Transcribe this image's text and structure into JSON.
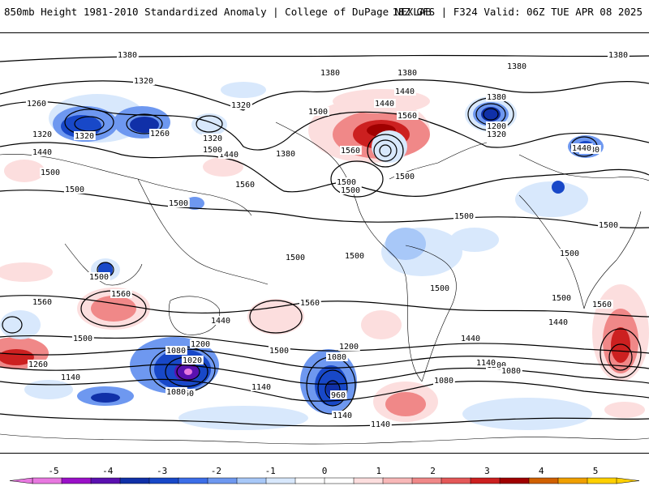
{
  "header": {
    "title": "850mb Height 1981-2010 Standardized Anomaly | College of DuPage NEXLAB",
    "run_info": "18Z GFS | F324 Valid: 06Z TUE APR 08 2025"
  },
  "colors": {
    "neg5": "#e878e0",
    "neg45": "#9a10c8",
    "neg4": "#5a10b0",
    "neg35": "#1030a8",
    "neg3": "#1848c8",
    "neg25": "#3c6ee8",
    "neg2": "#6e98f0",
    "neg15": "#a8c8f8",
    "neg1": "#d8e8fc",
    "zero": "#ffffff",
    "pos1": "#fcdede",
    "pos15": "#f8b8b8",
    "pos2": "#f08888",
    "pos25": "#e45858",
    "pos3": "#cc2020",
    "pos35": "#a00000",
    "pos4": "#d06000",
    "pos45": "#f0a000",
    "pos5": "#ffd000"
  },
  "legend": {
    "ticks": [
      "-5",
      "-4",
      "-3",
      "-2",
      "-1",
      "0",
      "1",
      "2",
      "3",
      "4",
      "5"
    ]
  },
  "contour_labels": [
    "1380",
    "1380",
    "1380",
    "1380",
    "1380",
    "1380",
    "1380",
    "1380",
    "1320",
    "1320",
    "1320",
    "1320",
    "1320",
    "1320",
    "1260",
    "1260",
    "1260",
    "1260",
    "1200",
    "1200",
    "1200",
    "1200",
    "1440",
    "1440",
    "1440",
    "1440",
    "1440",
    "1440",
    "1440",
    "1440",
    "1500",
    "1500",
    "1500",
    "1500",
    "1500",
    "1500",
    "1500",
    "1500",
    "1500",
    "1500",
    "1500",
    "1500",
    "1500",
    "1500",
    "1500",
    "1500",
    "1500",
    "1500",
    "1560",
    "1560",
    "1560",
    "1560",
    "1560",
    "1560",
    "1560",
    "1140",
    "1140",
    "1140",
    "1140",
    "1140",
    "1080",
    "1080",
    "1080",
    "1080",
    "1080",
    "1020",
    "960"
  ]
}
